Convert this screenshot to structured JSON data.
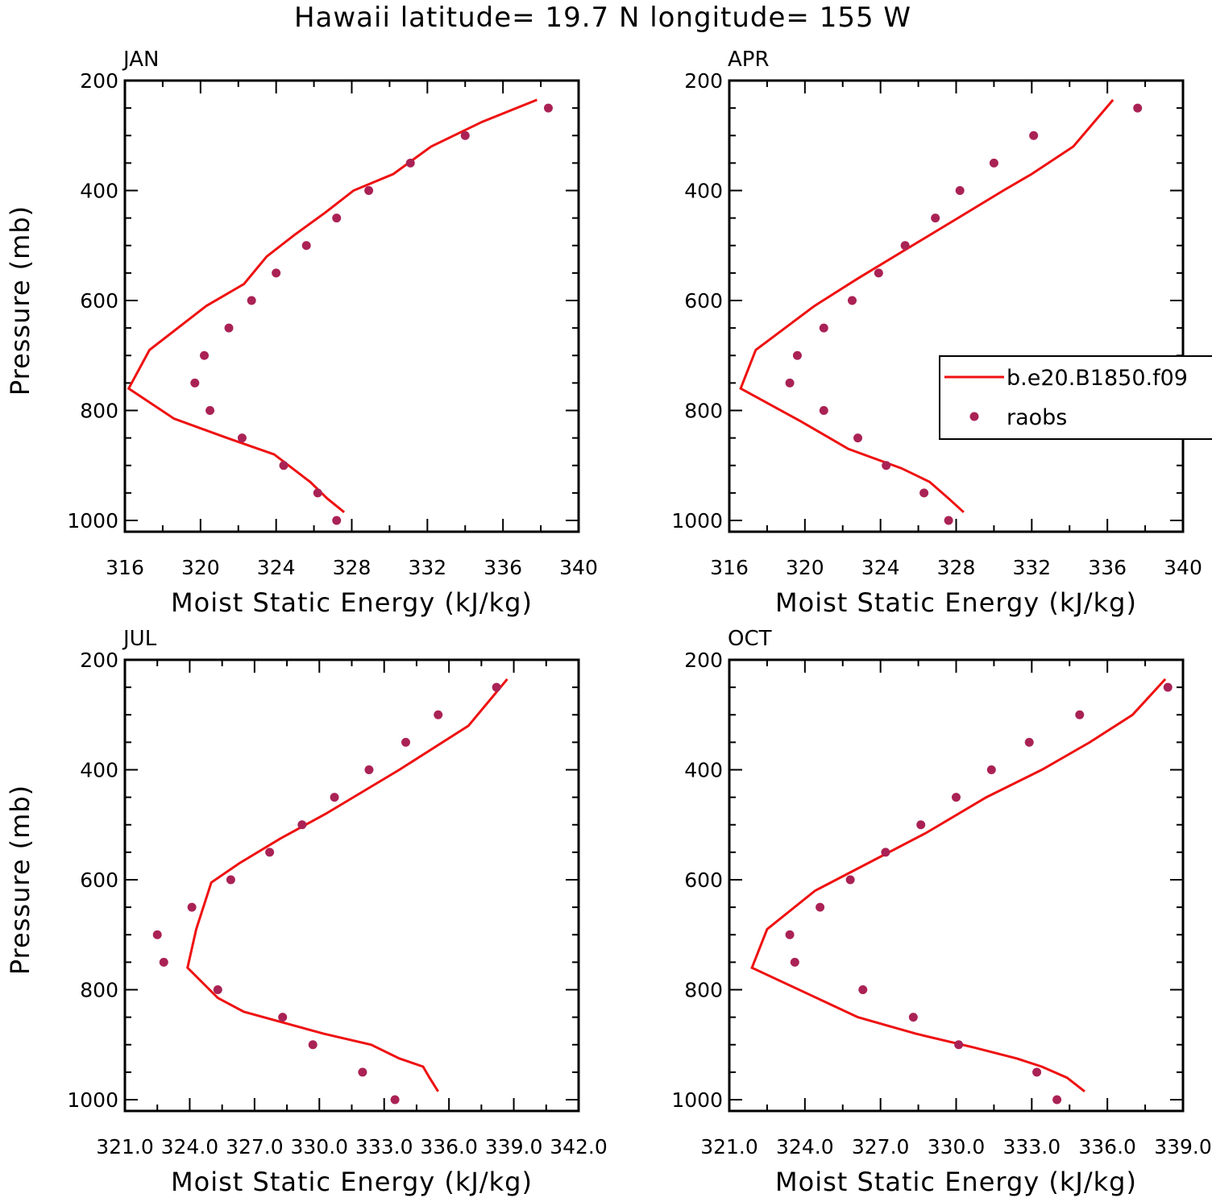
{
  "title": "Hawaii  latitude= 19.7 N longitude= 155 W",
  "colors": {
    "model": "#ee1111",
    "obs": "#aa2255"
  },
  "legend": {
    "model_label": "b.e20.B1850.f09",
    "obs_label": "raobs"
  },
  "chart_data": [
    {
      "type": "line",
      "label": "JAN",
      "xlabel": "Moist Static Energy (kJ/kg)",
      "ylabel": "Pressure (mb)",
      "xlim": [
        316,
        340
      ],
      "ylim": [
        1000,
        200
      ],
      "xticks": [
        "316",
        "320",
        "324",
        "328",
        "332",
        "336",
        "340"
      ],
      "yticks": [
        "200",
        "400",
        "600",
        "800",
        "1000"
      ],
      "series": [
        {
          "kind": "line",
          "x": [
            327.6,
            326.7,
            325.8,
            323.9,
            321.4,
            318.6,
            316.2,
            317.3,
            320.3,
            322.3,
            323.5,
            325.0,
            326.6,
            328.1,
            330.2,
            332.2,
            334.9,
            337.8
          ],
          "y": [
            985,
            960,
            930,
            880,
            850,
            815,
            760,
            690,
            610,
            570,
            520,
            480,
            440,
            400,
            370,
            320,
            275,
            235
          ]
        },
        {
          "kind": "scatter",
          "x": [
            327.2,
            326.2,
            324.4,
            322.2,
            320.5,
            319.7,
            320.2,
            321.5,
            322.7,
            324.0,
            325.6,
            327.2,
            328.9,
            331.1,
            334.0,
            338.4
          ],
          "y": [
            1000,
            950,
            900,
            850,
            800,
            750,
            700,
            650,
            600,
            550,
            500,
            450,
            400,
            350,
            300,
            250
          ]
        }
      ]
    },
    {
      "type": "line",
      "label": "APR",
      "xlabel": "Moist Static Energy (kJ/kg)",
      "ylabel": "",
      "xlim": [
        316,
        340
      ],
      "ylim": [
        1000,
        200
      ],
      "xticks": [
        "316",
        "320",
        "324",
        "328",
        "332",
        "336",
        "340"
      ],
      "yticks": [
        "200",
        "400",
        "600",
        "800",
        "1000"
      ],
      "series": [
        {
          "kind": "line",
          "x": [
            328.4,
            327.6,
            326.6,
            325.1,
            322.3,
            319.8,
            316.6,
            317.4,
            320.5,
            322.8,
            325.2,
            328.1,
            330.5,
            332.0,
            334.2,
            336.3
          ],
          "y": [
            985,
            960,
            930,
            905,
            870,
            820,
            760,
            690,
            610,
            560,
            510,
            450,
            400,
            370,
            320,
            235
          ]
        },
        {
          "kind": "scatter",
          "x": [
            327.6,
            326.3,
            324.3,
            322.8,
            321.0,
            319.2,
            319.6,
            321.0,
            322.5,
            323.9,
            325.3,
            326.9,
            328.2,
            330.0,
            332.1,
            337.6
          ],
          "y": [
            1000,
            950,
            900,
            850,
            800,
            750,
            700,
            650,
            600,
            550,
            500,
            450,
            400,
            350,
            300,
            250
          ]
        }
      ]
    },
    {
      "type": "line",
      "label": "JUL",
      "xlabel": "Moist Static Energy (kJ/kg)",
      "ylabel": "Pressure (mb)",
      "xlim": [
        321.0,
        342.0
      ],
      "ylim": [
        1000,
        200
      ],
      "xticks": [
        "321.0",
        "324.0",
        "327.0",
        "330.0",
        "333.0",
        "336.0",
        "339.0",
        "342.0"
      ],
      "yticks": [
        "200",
        "400",
        "600",
        "800",
        "1000"
      ],
      "series": [
        {
          "kind": "line",
          "x": [
            335.5,
            335.1,
            334.8,
            333.7,
            332.4,
            330.2,
            326.5,
            325.3,
            323.9,
            324.3,
            325.0,
            326.3,
            328.2,
            330.3,
            333.7,
            336.9,
            338.7
          ],
          "y": [
            985,
            960,
            940,
            925,
            900,
            880,
            840,
            815,
            760,
            690,
            605,
            570,
            525,
            480,
            400,
            320,
            235
          ]
        },
        {
          "kind": "scatter",
          "x": [
            333.5,
            332.0,
            329.7,
            328.3,
            325.3,
            322.8,
            322.5,
            324.1,
            325.9,
            327.7,
            329.2,
            330.7,
            332.3,
            334.0,
            335.5,
            338.2
          ],
          "y": [
            1000,
            950,
            900,
            850,
            800,
            750,
            700,
            650,
            600,
            550,
            500,
            450,
            400,
            350,
            300,
            250
          ]
        }
      ]
    },
    {
      "type": "line",
      "label": "OCT",
      "xlabel": "Moist Static Energy (kJ/kg)",
      "ylabel": "",
      "xlim": [
        321.0,
        339.0
      ],
      "ylim": [
        1000,
        200
      ],
      "xticks": [
        "321.0",
        "324.0",
        "327.0",
        "330.0",
        "333.0",
        "336.0",
        "339.0"
      ],
      "yticks": [
        "200",
        "400",
        "600",
        "800",
        "1000"
      ],
      "series": [
        {
          "kind": "line",
          "x": [
            335.1,
            334.4,
            333.4,
            332.4,
            330.7,
            328.4,
            326.1,
            321.9,
            322.5,
            324.4,
            326.5,
            328.8,
            331.2,
            333.4,
            335.3,
            337.0,
            338.3
          ],
          "y": [
            985,
            960,
            940,
            925,
            905,
            880,
            850,
            760,
            690,
            620,
            570,
            515,
            450,
            400,
            350,
            300,
            235
          ]
        },
        {
          "kind": "scatter",
          "x": [
            334.0,
            333.2,
            330.1,
            328.3,
            326.3,
            323.6,
            323.4,
            324.6,
            325.8,
            327.2,
            328.6,
            330.0,
            331.4,
            332.9,
            334.9,
            338.4
          ],
          "y": [
            1000,
            950,
            900,
            850,
            800,
            750,
            700,
            650,
            600,
            550,
            500,
            450,
            400,
            350,
            300,
            250
          ]
        }
      ]
    }
  ]
}
